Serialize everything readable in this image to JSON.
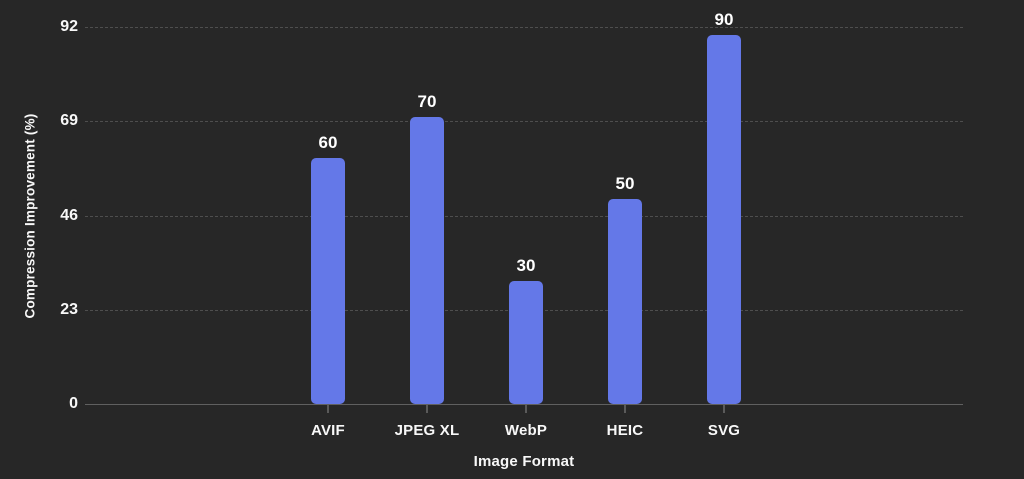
{
  "chart_data": {
    "type": "bar",
    "title": "",
    "categories": [
      "AVIF",
      "JPEG XL",
      "WebP",
      "HEIC",
      "SVG"
    ],
    "values": [
      60,
      70,
      30,
      50,
      90
    ],
    "xlabel": "Image Format",
    "ylabel": "Compression Improvement (%)",
    "yticks": [
      0,
      23,
      46,
      69,
      92
    ],
    "ylim": [
      0,
      92
    ],
    "grid": "horizontal-dashed",
    "legend": "none",
    "data_labels": "above-bars",
    "colors": {
      "background": "#272727",
      "bar": "#6478e8",
      "text": "#f8f8f8",
      "gridline": "#4e4e4e",
      "axis_line": "#606060",
      "tick_mark": "#5a5a5a"
    }
  }
}
